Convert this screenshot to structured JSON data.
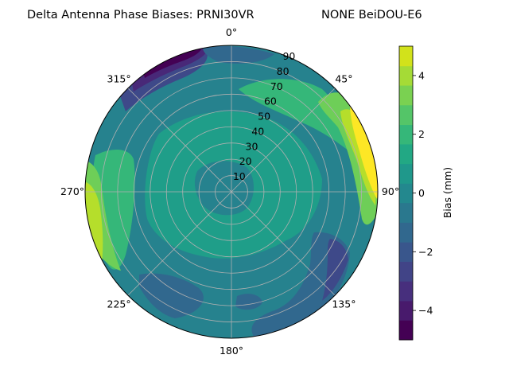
{
  "chart_data": {
    "type": "polar-contour",
    "title_left": "Delta Antenna Phase Biases: PRNI30VR",
    "title_right": "NONE BeiDOU-E6",
    "angle_labels": [
      "0°",
      "45°",
      "90°",
      "135°",
      "180°",
      "225°",
      "270°",
      "315°"
    ],
    "radial_labels": [
      "10",
      "20",
      "30",
      "40",
      "50",
      "60",
      "70",
      "80",
      "90"
    ],
    "radial_range": [
      0,
      90
    ],
    "theta_direction": "clockwise",
    "theta_zero": "top",
    "grid": true,
    "colorbar": {
      "label": "Bias (mm)",
      "ticks": [
        "4",
        "2",
        "0",
        "−2",
        "−4"
      ],
      "tick_values": [
        4,
        2,
        0,
        -2,
        -4
      ],
      "levels": [
        -5,
        -4.33,
        -3.67,
        -3,
        -2.33,
        -1.67,
        -1,
        -0.33,
        0.33,
        1,
        1.67,
        2.33,
        3,
        3.67,
        4.33,
        5
      ],
      "colors": [
        "#440154",
        "#482878",
        "#3e4989",
        "#31688e",
        "#26828e",
        "#1f9e89",
        "#35b779",
        "#6ece58",
        "#b5de2b",
        "#fde725"
      ],
      "palette": [
        "#440154",
        "#481a6c",
        "#472f7d",
        "#414487",
        "#39568c",
        "#31688e",
        "#2a788e",
        "#23888e",
        "#1f988b",
        "#22a884",
        "#35b779",
        "#54c568",
        "#7ad151",
        "#a5db36",
        "#d2e21b",
        "#fde725"
      ]
    },
    "regions": [
      {
        "level": 0.0,
        "color": "#26828e",
        "description": "background"
      },
      {
        "level": 0.5,
        "color": "#1f9e89",
        "ring": [
          20,
          75
        ]
      },
      {
        "level": 1.5,
        "color": "#35b779",
        "sector": [
          270,
          300
        ]
      },
      {
        "level": 3.0,
        "color": "#b5de2b",
        "sector": [
          255,
          285
        ]
      },
      {
        "level": 4.5,
        "color": "#fde725",
        "sector": [
          50,
          85
        ]
      },
      {
        "level": -3.5,
        "color": "#482878",
        "sector": [
          325,
          345
        ]
      },
      {
        "level": -1.5,
        "color": "#3e4989",
        "sector": [
          100,
          160
        ]
      }
    ]
  }
}
